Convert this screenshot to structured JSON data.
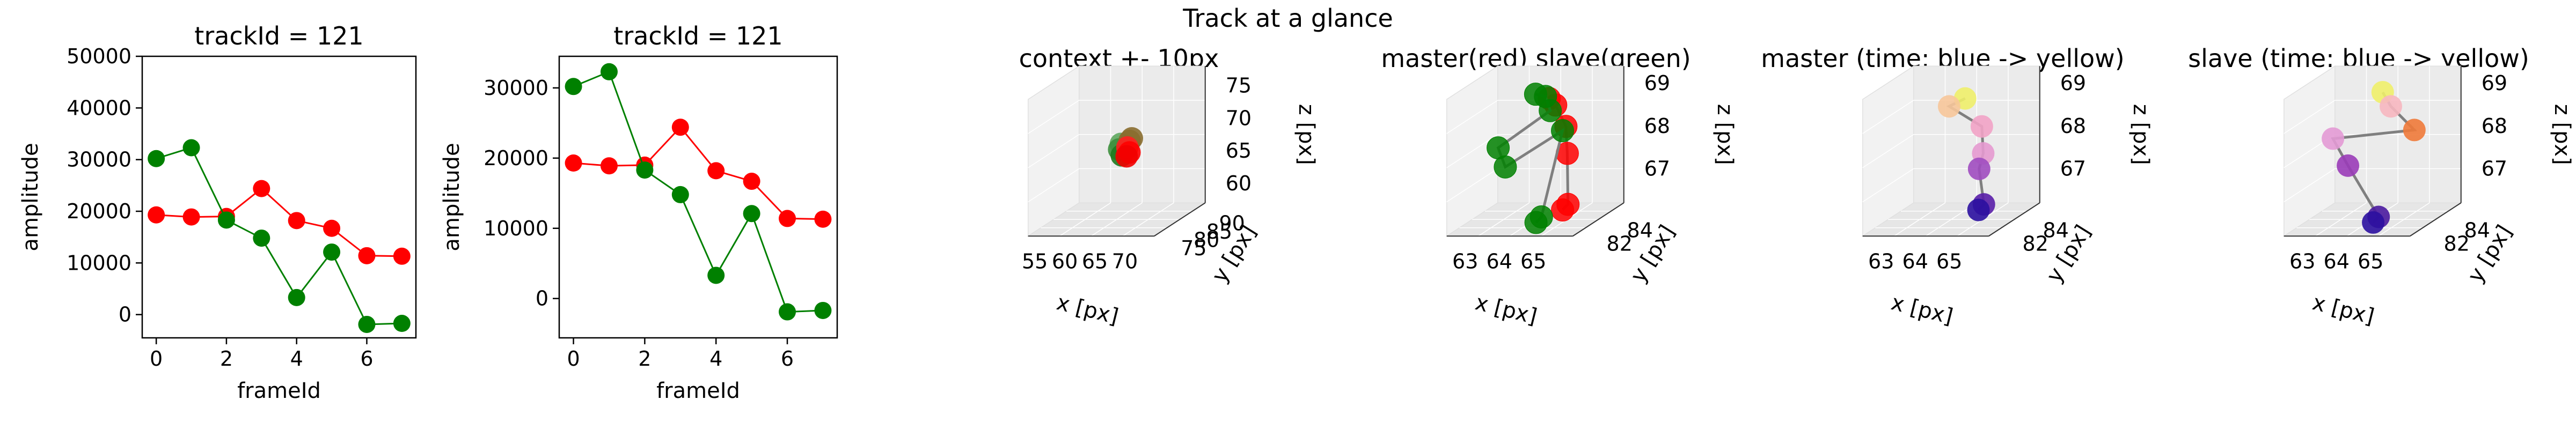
{
  "figure": {
    "suptitle": "Track at a glance"
  },
  "chart_data": [
    {
      "type": "line",
      "title": "trackId = 121",
      "xlabel": "frameId",
      "ylabel": "amplitude",
      "xticks": [
        0,
        2,
        4,
        6
      ],
      "yticks": [
        0,
        10000,
        20000,
        30000,
        40000,
        50000
      ],
      "xlim": [
        -0.4,
        7.4
      ],
      "ylim": [
        -4500,
        50000
      ],
      "x": [
        0,
        1,
        2,
        3,
        4,
        5,
        6,
        7
      ],
      "series": [
        {
          "color": "#ff0000",
          "values": [
            19300,
            18900,
            19000,
            24400,
            18200,
            16700,
            11400,
            11300
          ]
        },
        {
          "color": "#008000",
          "values": [
            30200,
            32300,
            18300,
            14800,
            3300,
            12100,
            -1900,
            -1700
          ]
        }
      ]
    },
    {
      "type": "line",
      "title": "trackId = 121",
      "xlabel": "frameId",
      "ylabel": "amplitude",
      "xticks": [
        0,
        2,
        4,
        6
      ],
      "yticks": [
        0,
        10000,
        20000,
        30000
      ],
      "xlim": [
        -0.4,
        7.4
      ],
      "ylim": [
        -5600,
        34500
      ],
      "x": [
        0,
        1,
        2,
        3,
        4,
        5,
        6,
        7
      ],
      "series": [
        {
          "color": "#ff0000",
          "values": [
            19300,
            18900,
            19000,
            24400,
            18200,
            16700,
            11400,
            11300
          ]
        },
        {
          "color": "#008000",
          "values": [
            30200,
            32300,
            18300,
            14800,
            3300,
            12100,
            -1900,
            -1700
          ]
        }
      ]
    },
    {
      "type": "scatter",
      "projection": "3d",
      "title": "context +- 10px",
      "xlabel": "x [px]",
      "ylabel": "y [px]",
      "zlabel": "z [px]",
      "xticks": [
        55,
        60,
        65,
        70
      ],
      "yticks": [
        75,
        80,
        85,
        90
      ],
      "zticks": [
        60,
        65,
        70,
        75
      ],
      "xlim": [
        53,
        74
      ],
      "ylim": [
        73,
        93
      ],
      "zlim": [
        57,
        78
      ],
      "points": [
        {
          "x": 64.2,
          "y": 83.0,
          "z": 68.6,
          "color": "#5fa85f"
        },
        {
          "x": 64.0,
          "y": 82.8,
          "z": 67.8,
          "color": "#3c8f3c"
        },
        {
          "x": 64.6,
          "y": 82.4,
          "z": 67.0,
          "color": "#1f7a1f"
        },
        {
          "x": 65.4,
          "y": 83.6,
          "z": 68.9,
          "color": "#8a6d2f"
        },
        {
          "x": 65.6,
          "y": 84.0,
          "z": 69.2,
          "color": "#8a6d2f"
        },
        {
          "x": 65.2,
          "y": 83.2,
          "z": 68.0,
          "color": "#ff2020"
        },
        {
          "x": 65.8,
          "y": 82.6,
          "z": 67.4,
          "color": "#ff0000"
        },
        {
          "x": 65.5,
          "y": 82.2,
          "z": 66.9,
          "color": "#f20000"
        }
      ]
    },
    {
      "type": "scatter",
      "projection": "3d",
      "title": "master(red) slave(green)",
      "xlabel": "x [px]",
      "ylabel": "y [px]",
      "zlabel": "z [px]",
      "xticks": [
        63,
        64,
        65
      ],
      "yticks": [
        82,
        84
      ],
      "zticks": [
        67,
        68,
        69
      ],
      "xlim": [
        62.3,
        66.0
      ],
      "ylim": [
        80.8,
        85.8
      ],
      "zlim": [
        66.2,
        69.4
      ],
      "paths": [
        {
          "color": "#ff0000",
          "points": [
            {
              "x": 64.5,
              "y": 83.5,
              "z": 69.0
            },
            {
              "x": 64.6,
              "y": 83.8,
              "z": 68.8
            },
            {
              "x": 64.9,
              "y": 83.8,
              "z": 68.3
            },
            {
              "x": 65.0,
              "y": 83.6,
              "z": 67.7
            },
            {
              "x": 65.2,
              "y": 83.0,
              "z": 66.6
            },
            {
              "x": 65.1,
              "y": 82.8,
              "z": 66.5
            }
          ]
        },
        {
          "color": "#008000",
          "points": [
            {
              "x": 64.1,
              "y": 83.5,
              "z": 69.1
            },
            {
              "x": 64.3,
              "y": 83.8,
              "z": 69.0
            },
            {
              "x": 64.5,
              "y": 83.6,
              "z": 68.7
            },
            {
              "x": 63.3,
              "y": 82.5,
              "z": 68.0
            },
            {
              "x": 63.6,
              "y": 82.2,
              "z": 67.6
            },
            {
              "x": 64.8,
              "y": 83.8,
              "z": 68.2
            },
            {
              "x": 64.6,
              "y": 82.4,
              "z": 66.4
            },
            {
              "x": 64.5,
              "y": 82.2,
              "z": 66.3
            }
          ]
        }
      ]
    },
    {
      "type": "scatter",
      "projection": "3d",
      "title": "master (time: blue -> yellow)",
      "xlabel": "x [px]",
      "ylabel": "y [px]",
      "zlabel": "z [px]",
      "xticks": [
        63,
        64,
        65
      ],
      "yticks": [
        82,
        84
      ],
      "zticks": [
        67,
        68,
        69
      ],
      "xlim": [
        62.3,
        66.0
      ],
      "ylim": [
        80.8,
        85.8
      ],
      "zlim": [
        66.2,
        69.4
      ],
      "points": [
        {
          "x": 64.5,
          "y": 83.5,
          "z": 69.0,
          "color": "#f0f06a"
        },
        {
          "x": 64.0,
          "y": 83.6,
          "z": 68.8,
          "color": "#f7c79a"
        },
        {
          "x": 64.9,
          "y": 83.8,
          "z": 68.3,
          "color": "#f2a3c7"
        },
        {
          "x": 65.0,
          "y": 83.6,
          "z": 67.7,
          "color": "#e59ad0"
        },
        {
          "x": 65.0,
          "y": 83.2,
          "z": 67.4,
          "color": "#a04cc0"
        },
        {
          "x": 65.2,
          "y": 83.0,
          "z": 66.6,
          "color": "#5a1ea8"
        },
        {
          "x": 65.1,
          "y": 82.8,
          "z": 66.5,
          "color": "#2b0fa0"
        }
      ]
    },
    {
      "type": "scatter",
      "projection": "3d",
      "title": "slave (time: blue -> yellow)",
      "xlabel": "x [px]",
      "ylabel": "y [px]",
      "zlabel": "z [px]",
      "xticks": [
        63,
        64,
        65
      ],
      "yticks": [
        82,
        84
      ],
      "zticks": [
        67,
        68,
        69
      ],
      "xlim": [
        62.3,
        66.0
      ],
      "ylim": [
        80.8,
        85.8
      ],
      "zlim": [
        66.2,
        69.4
      ],
      "points": [
        {
          "x": 64.3,
          "y": 83.8,
          "z": 69.1,
          "color": "#f0f06a"
        },
        {
          "x": 64.6,
          "y": 83.6,
          "z": 68.8,
          "color": "#f7b7c0"
        },
        {
          "x": 65.2,
          "y": 83.9,
          "z": 68.2,
          "color": "#f07a3a"
        },
        {
          "x": 63.2,
          "y": 82.6,
          "z": 68.2,
          "color": "#e39ad5"
        },
        {
          "x": 63.7,
          "y": 82.4,
          "z": 67.6,
          "color": "#9a3cb8"
        },
        {
          "x": 64.6,
          "y": 82.4,
          "z": 66.4,
          "color": "#4a1a9e"
        },
        {
          "x": 64.5,
          "y": 82.2,
          "z": 66.3,
          "color": "#2b0fa0"
        }
      ]
    }
  ]
}
